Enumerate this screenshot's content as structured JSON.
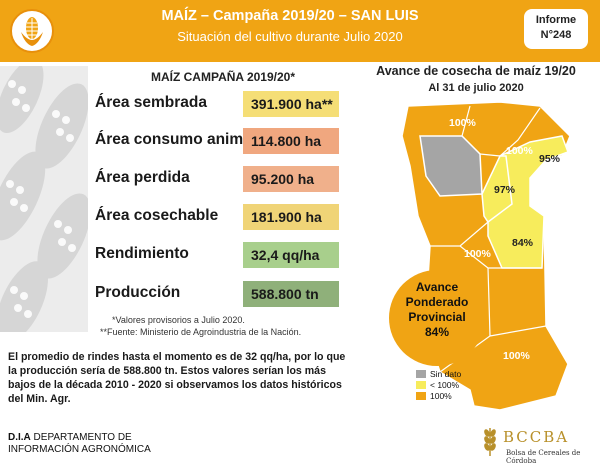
{
  "header": {
    "title": "MAÍZ – Campaña 2019/20 – SAN LUIS",
    "subtitle": "Situación del cultivo durante Julio 2020",
    "badge_line1": "Informe",
    "badge_line2": "N°248",
    "accent_color": "#f0a414"
  },
  "stats": {
    "heading": "MAÍZ CAMPAÑA 2019/20*",
    "rows": [
      {
        "label": "Área sembrada",
        "value": "391.900 ha**",
        "color": "#f5de76"
      },
      {
        "label": "Área consumo animal",
        "value": "114.800 ha",
        "color": "#f0a77f"
      },
      {
        "label": "Área perdida",
        "value": "95.200 ha",
        "color": "#f0b08b"
      },
      {
        "label": "Área cosechable",
        "value": "181.900 ha",
        "color": "#f0d477"
      },
      {
        "label": "Rendimiento",
        "value": "32,4 qq/ha",
        "color": "#a8cf8c"
      },
      {
        "label": "Producción",
        "value": "588.800 tn",
        "color": "#8fb07a"
      }
    ],
    "note1": "*Valores provisorios a Julio 2020.",
    "note2": "**Fuente: Ministerio de Agroindustria de la Nación."
  },
  "summary": "El promedio de rindes hasta el momento es de 32 qq/ha, por lo que la producción sería de 588.800 tn. Estos valores serían los más bajos de la década 2010 - 2020 si observamos los datos históricos del Min. Agr.",
  "map": {
    "title": "Avance de cosecha de maíz 19/20",
    "date": "Al 31 de julio 2020",
    "labels": {
      "north_west": "100%",
      "north_center": "100%",
      "north_east": "95%",
      "center_north": "97%",
      "center_west": "100%",
      "center_east": "84%",
      "south": "100%"
    },
    "avance_line1": "Avance",
    "avance_line2": "Ponderado",
    "avance_line3": "Provincial",
    "avance_value": "84%",
    "legend": [
      {
        "label": "Sin dato",
        "color": "#a5a5a5"
      },
      {
        "label": "< 100%",
        "color": "#f7ec5c"
      },
      {
        "label": "100%",
        "color": "#f0a414"
      }
    ]
  },
  "footer": {
    "dia_bold": "D.I.A",
    "dia_line1_rest": " DEPARTAMENTO DE",
    "dia_line2": "INFORMACIÓN AGRONÓMICA",
    "org_name": "BCCBA",
    "org_sub": "Bolsa de Cereales de Córdoba"
  }
}
